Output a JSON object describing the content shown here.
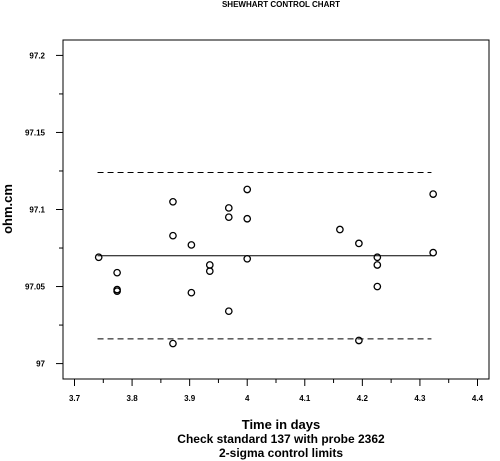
{
  "chart_data": {
    "type": "scatter",
    "title": "SHEWHART CONTROL CHART",
    "ylabel": "ohm.cm",
    "xlabel": "Time in days",
    "captions": [
      "Check standard 137 with probe 2362",
      "2-sigma control limits"
    ],
    "xlim": [
      3.7,
      4.4
    ],
    "ylim": [
      97.0,
      97.2
    ],
    "x_ticks": [
      3.7,
      3.8,
      3.9,
      4.0,
      4.1,
      4.2,
      4.3,
      4.4
    ],
    "x_tick_labels": [
      "3.7",
      "3.8",
      "3.9",
      "4",
      "4.1",
      "4.2",
      "4.3",
      "4.4"
    ],
    "y_ticks": [
      97.0,
      97.05,
      97.1,
      97.15,
      97.2
    ],
    "y_tick_labels": [
      "97",
      "97.05",
      "97.1",
      "97.15",
      "97.2"
    ],
    "center_line": 97.07,
    "upper_limit": 97.124,
    "lower_limit": 97.016,
    "limit_range": [
      3.74,
      4.32
    ],
    "grid": false,
    "points": [
      {
        "x": 3.742,
        "y": 97.069
      },
      {
        "x": 3.774,
        "y": 97.059
      },
      {
        "x": 3.774,
        "y": 97.048
      },
      {
        "x": 3.774,
        "y": 97.047
      },
      {
        "x": 3.871,
        "y": 97.105
      },
      {
        "x": 3.871,
        "y": 97.083
      },
      {
        "x": 3.871,
        "y": 97.013
      },
      {
        "x": 3.903,
        "y": 97.077
      },
      {
        "x": 3.903,
        "y": 97.046
      },
      {
        "x": 3.935,
        "y": 97.064
      },
      {
        "x": 3.935,
        "y": 97.06
      },
      {
        "x": 3.968,
        "y": 97.101
      },
      {
        "x": 3.968,
        "y": 97.095
      },
      {
        "x": 3.968,
        "y": 97.034
      },
      {
        "x": 4.0,
        "y": 97.113
      },
      {
        "x": 4.0,
        "y": 97.094
      },
      {
        "x": 4.0,
        "y": 97.068
      },
      {
        "x": 4.161,
        "y": 97.087
      },
      {
        "x": 4.194,
        "y": 97.078
      },
      {
        "x": 4.194,
        "y": 97.015
      },
      {
        "x": 4.226,
        "y": 97.069
      },
      {
        "x": 4.226,
        "y": 97.064
      },
      {
        "x": 4.226,
        "y": 97.05
      },
      {
        "x": 4.323,
        "y": 97.11
      },
      {
        "x": 4.323,
        "y": 97.072
      }
    ]
  }
}
